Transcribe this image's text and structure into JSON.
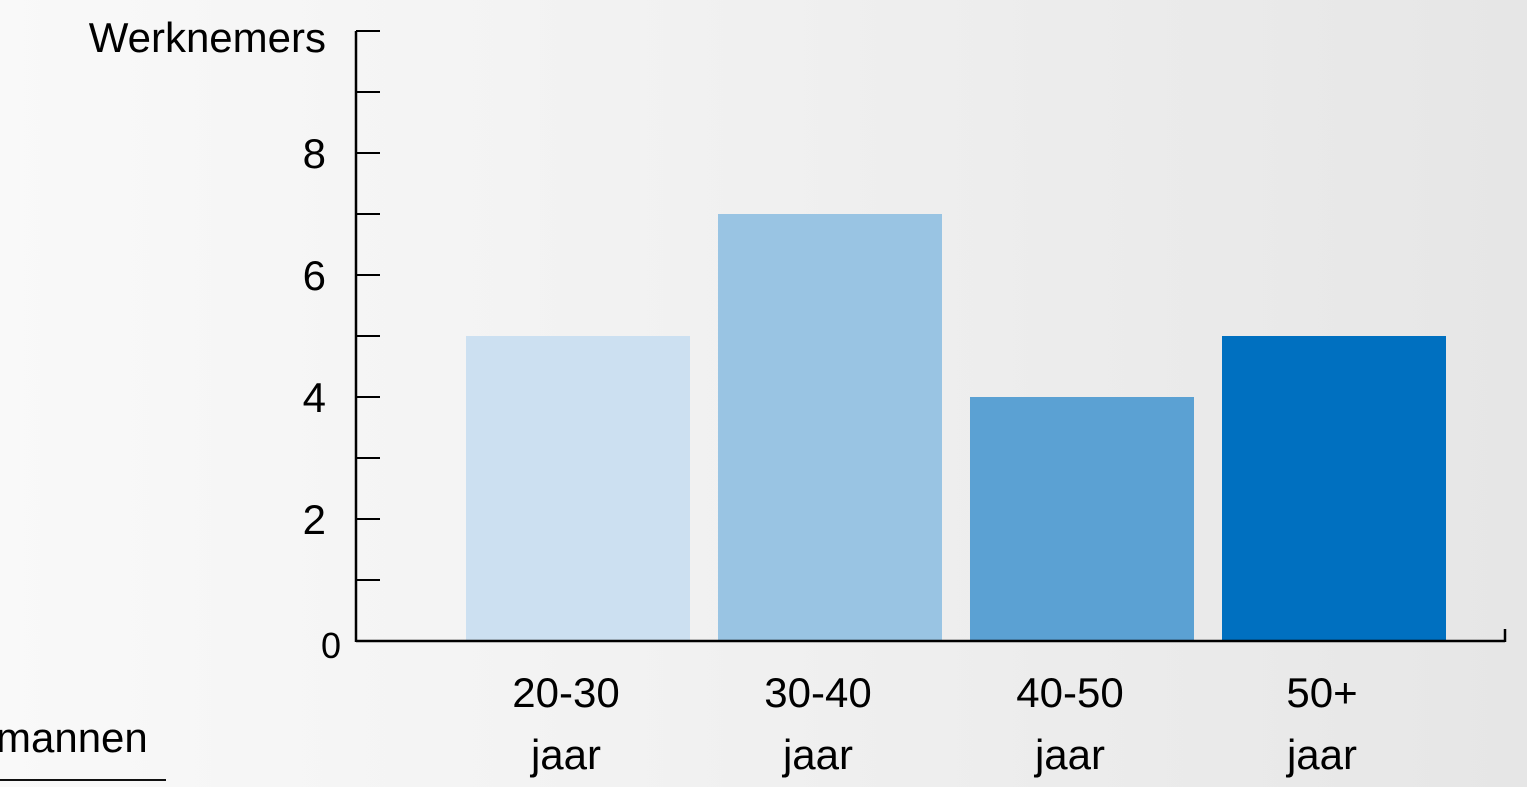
{
  "chart_data": {
    "type": "bar",
    "ylabel": "Werknemers",
    "categories": [
      [
        "20-30",
        "jaar"
      ],
      [
        "30-40",
        "jaar"
      ],
      [
        "40-50",
        "jaar"
      ],
      [
        "50+",
        "jaar"
      ]
    ],
    "values": [
      5,
      7,
      4,
      5
    ],
    "colors": [
      "#cce0f1",
      "#99c4e3",
      "#5ba1d3",
      "#0070c0"
    ],
    "ylim": [
      0,
      10
    ],
    "yticks": [
      0,
      2,
      4,
      6,
      8
    ],
    "minor_tick_step": 1,
    "grid": false,
    "legend": "none"
  },
  "side_text": {
    "label": "mannen"
  }
}
